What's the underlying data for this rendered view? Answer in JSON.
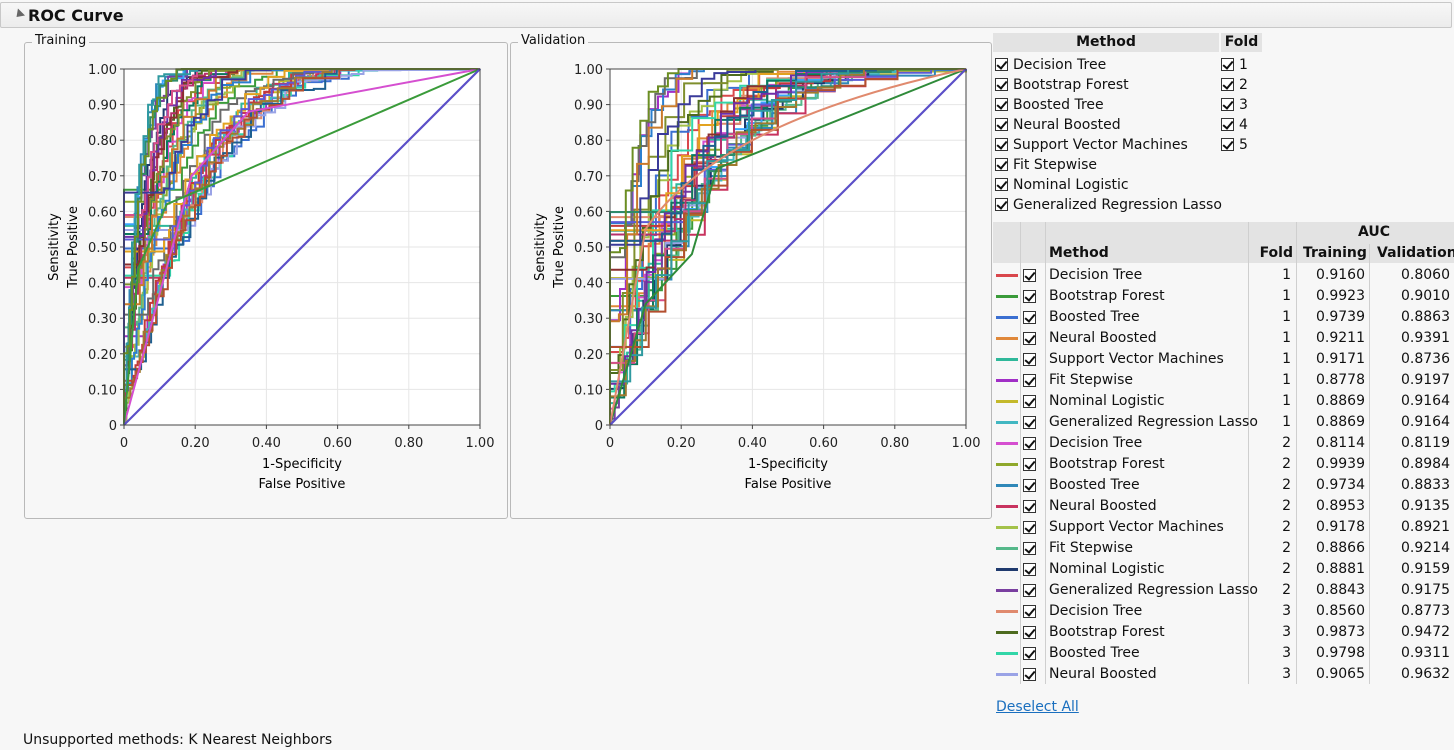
{
  "outline": {
    "title": "ROC Curve"
  },
  "training": {
    "title": "Training",
    "ylabel1": "Sensitivity",
    "ylabel2": "True Positive",
    "xlabel1": "1-Specificity",
    "xlabel2": "False Positive",
    "yticks": [
      "0",
      "0.10",
      "0.20",
      "0.30",
      "0.40",
      "0.50",
      "0.60",
      "0.70",
      "0.80",
      "0.90",
      "1.00"
    ],
    "xticks": [
      "0",
      "0.20",
      "0.40",
      "0.60",
      "0.80",
      "1.00"
    ]
  },
  "validation": {
    "title": "Validation",
    "ylabel1": "Sensitivity",
    "ylabel2": "True Positive",
    "xlabel1": "1-Specificity",
    "xlabel2": "False Positive",
    "yticks": [
      "0",
      "0.10",
      "0.20",
      "0.30",
      "0.40",
      "0.50",
      "0.60",
      "0.70",
      "0.80",
      "0.90",
      "1.00"
    ],
    "xticks": [
      "0",
      "0.20",
      "0.40",
      "0.60",
      "0.80",
      "1.00"
    ]
  },
  "filter": {
    "method_header": "Method",
    "fold_header": "Fold",
    "methods": [
      "Decision Tree",
      "Bootstrap Forest",
      "Boosted Tree",
      "Neural Boosted",
      "Support Vector Machines",
      "Fit Stepwise",
      "Nominal Logistic",
      "Generalized Regression Lasso"
    ],
    "folds": [
      "1",
      "2",
      "3",
      "4",
      "5"
    ]
  },
  "auc_table": {
    "group_header": "AUC",
    "headers": {
      "method": "Method",
      "fold": "Fold",
      "training": "Training",
      "validation": "Validation"
    },
    "rows": [
      {
        "color": "#d9474c",
        "method": "Decision Tree",
        "fold": "1",
        "training": "0.9160",
        "validation": "0.8060"
      },
      {
        "color": "#3a9b3a",
        "method": "Bootstrap Forest",
        "fold": "1",
        "training": "0.9923",
        "validation": "0.9010"
      },
      {
        "color": "#3b6fd1",
        "method": "Boosted Tree",
        "fold": "1",
        "training": "0.9739",
        "validation": "0.8863"
      },
      {
        "color": "#e0883a",
        "method": "Neural Boosted",
        "fold": "1",
        "training": "0.9211",
        "validation": "0.9391"
      },
      {
        "color": "#2fb89a",
        "method": "Support Vector Machines",
        "fold": "1",
        "training": "0.9171",
        "validation": "0.8736"
      },
      {
        "color": "#a12fc6",
        "method": "Fit Stepwise",
        "fold": "1",
        "training": "0.8778",
        "validation": "0.9197"
      },
      {
        "color": "#c4b92b",
        "method": "Nominal Logistic",
        "fold": "1",
        "training": "0.8869",
        "validation": "0.9164"
      },
      {
        "color": "#42b7c2",
        "method": "Generalized Regression Lasso",
        "fold": "1",
        "training": "0.8869",
        "validation": "0.9164"
      },
      {
        "color": "#d54fd0",
        "method": "Decision Tree",
        "fold": "2",
        "training": "0.8114",
        "validation": "0.8119"
      },
      {
        "color": "#8fa82b",
        "method": "Bootstrap Forest",
        "fold": "2",
        "training": "0.9939",
        "validation": "0.8984"
      },
      {
        "color": "#2f88b8",
        "method": "Boosted Tree",
        "fold": "2",
        "training": "0.9734",
        "validation": "0.8833"
      },
      {
        "color": "#c8335f",
        "method": "Neural Boosted",
        "fold": "2",
        "training": "0.8953",
        "validation": "0.9135"
      },
      {
        "color": "#a4c24a",
        "method": "Support Vector Machines",
        "fold": "2",
        "training": "0.9178",
        "validation": "0.8921"
      },
      {
        "color": "#55b88a",
        "method": "Fit Stepwise",
        "fold": "2",
        "training": "0.8866",
        "validation": "0.9214"
      },
      {
        "color": "#1f3a6e",
        "method": "Nominal Logistic",
        "fold": "2",
        "training": "0.8881",
        "validation": "0.9159"
      },
      {
        "color": "#7a3fa0",
        "method": "Generalized Regression Lasso",
        "fold": "2",
        "training": "0.8843",
        "validation": "0.9175"
      },
      {
        "color": "#e08a6e",
        "method": "Decision Tree",
        "fold": "3",
        "training": "0.8560",
        "validation": "0.8773"
      },
      {
        "color": "#4d6b1f",
        "method": "Bootstrap Forest",
        "fold": "3",
        "training": "0.9873",
        "validation": "0.9472"
      },
      {
        "color": "#32d6a8",
        "method": "Boosted Tree",
        "fold": "3",
        "training": "0.9798",
        "validation": "0.9311"
      },
      {
        "color": "#9aa3e6",
        "method": "Neural Boosted",
        "fold": "3",
        "training": "0.9065",
        "validation": "0.9632"
      }
    ]
  },
  "deselect_label": "Deselect All",
  "footer": "Unsupported methods:  K Nearest Neighbors"
}
